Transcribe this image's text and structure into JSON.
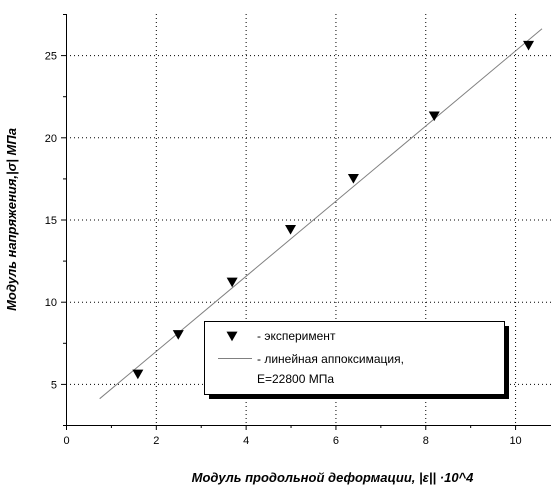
{
  "chart_data": {
    "type": "scatter",
    "xlabel": "Модуль продольной деформации, |ε|| ·10^4",
    "ylabel": "Модуль напряжения,|σ|  МПа",
    "xlim": [
      0,
      10.8
    ],
    "ylim": [
      2.5,
      27.5
    ],
    "x_ticks": [
      0,
      2,
      4,
      6,
      8,
      10
    ],
    "y_ticks": [
      5,
      10,
      15,
      20,
      25
    ],
    "grid": true,
    "legend_position": "bottom-right",
    "colors": {
      "points": "#000000",
      "fit_line": "#808080",
      "grid": "#000000"
    },
    "series": [
      {
        "name": "- эксперимент",
        "kind": "scatter",
        "marker": "triangle-down",
        "x": [
          1.6,
          2.5,
          3.7,
          5.0,
          6.4,
          8.2,
          10.3
        ],
        "y": [
          5.6,
          8.0,
          11.2,
          14.4,
          17.5,
          21.3,
          25.6
        ]
      },
      {
        "name": "- линейная аппоксимация,",
        "name_line2": "Е=22800 МПа",
        "kind": "line",
        "x": [
          0.75,
          10.6
        ],
        "y": [
          4.1,
          26.6
        ]
      }
    ]
  }
}
